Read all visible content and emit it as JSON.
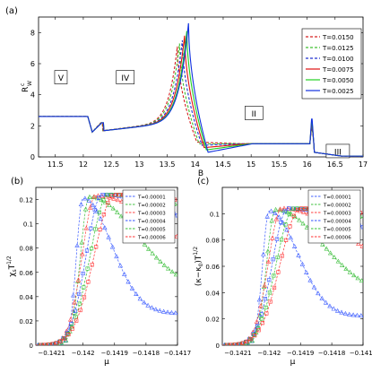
{
  "chart_data": [
    {
      "panel": "(a)",
      "type": "line",
      "xlabel": "B",
      "ylabel_base": "R",
      "ylabel_sup": "c",
      "ylabel_sub": "W",
      "xlim": [
        11.2,
        17
      ],
      "ylim": [
        0,
        9
      ],
      "xticks": [
        11.5,
        12,
        12.5,
        13,
        13.5,
        14,
        14.5,
        15,
        15.5,
        16,
        16.5,
        17
      ],
      "xtick_labels": [
        "11.5",
        "12",
        "12.5",
        "13",
        "13.5",
        "14",
        "14.5",
        "15",
        "15.5",
        "16",
        "16.5",
        "17"
      ],
      "yticks": [
        0,
        2,
        4,
        6,
        8
      ],
      "ytick_labels": [
        "0",
        "2",
        "4",
        "6",
        "8"
      ],
      "legend_position": "top-right",
      "region_labels": [
        {
          "text": "V",
          "x": 11.6,
          "y": 5.1
        },
        {
          "text": "IV",
          "x": 12.75,
          "y": 5.1
        },
        {
          "text": "II",
          "x": 15.05,
          "y": 2.8
        },
        {
          "text": "III",
          "x": 16.55,
          "y": 0.35
        }
      ],
      "series": [
        {
          "name": "T=0.0150",
          "color": "#d62020",
          "dash": "dashed",
          "peak_x": 13.68,
          "peak_y": 7.1,
          "jump_y": 2.0,
          "lowmin": 0.95
        },
        {
          "name": "T=0.0125",
          "color": "#40c030",
          "dash": "dashed",
          "peak_x": 13.72,
          "peak_y": 7.3,
          "jump_y": 2.1,
          "lowmin": 0.85
        },
        {
          "name": "T=0.0100",
          "color": "#2030d0",
          "dash": "dashed",
          "peak_x": 13.77,
          "peak_y": 7.5,
          "jump_y": 2.2,
          "lowmin": 0.75
        },
        {
          "name": "T=0.0075",
          "color": "#e01010",
          "dash": "solid",
          "peak_x": 13.81,
          "peak_y": 7.8,
          "jump_y": 2.35,
          "lowmin": 0.6
        },
        {
          "name": "T=0.0050",
          "color": "#20d020",
          "dash": "solid",
          "peak_x": 13.85,
          "peak_y": 8.1,
          "jump_y": 2.5,
          "lowmin": 0.45
        },
        {
          "name": "T=0.0025",
          "color": "#1030e0",
          "dash": "solid",
          "peak_x": 13.88,
          "peak_y": 8.6,
          "jump_y": 2.7,
          "lowmin": 0.3
        }
      ]
    },
    {
      "panel": "(b)",
      "type": "line",
      "xlabel": "μ",
      "ylabel_base": "χ",
      "ylabel_sub": "s",
      "ylabel_T": "T",
      "ylabel_sup": "1/2",
      "xlim": [
        -0.14215,
        -0.1417
      ],
      "ylim": [
        0,
        0.13
      ],
      "xticks": [
        -0.1421,
        -0.142,
        -0.1419,
        -0.1418,
        -0.1417
      ],
      "xtick_labels": [
        "−0.1421",
        "−0.142",
        "−0.1419",
        "−0.1418",
        "−0.1417"
      ],
      "yticks": [
        0,
        0.02,
        0.04,
        0.06,
        0.08,
        0.1,
        0.12
      ],
      "ytick_labels": [
        "0",
        "0.02",
        "0.04",
        "0.06",
        "0.08",
        "0.1",
        "0.12"
      ],
      "legend_position": "top-right",
      "series": [
        {
          "name": "T=0.00001",
          "color": "#4060ff",
          "marker": "triangle",
          "peak_x": -0.142,
          "peak_y": 0.121,
          "tail_y": 0.026,
          "wl": 3e-05,
          "wr": 0.00012
        },
        {
          "name": "T=0.00002",
          "color": "#40c040",
          "marker": "triangle",
          "peak_x": -0.14198,
          "peak_y": 0.122,
          "tail_y": 0.044,
          "wl": 4e-05,
          "wr": 0.0002
        },
        {
          "name": "T=0.00003",
          "color": "#ff4040",
          "marker": "triangle",
          "peak_x": -0.14196,
          "peak_y": 0.123,
          "tail_y": 0.06,
          "wl": 6e-05,
          "wr": 0.00028
        },
        {
          "name": "T=0.00004",
          "color": "#3050ff",
          "marker": "square",
          "peak_x": -0.14194,
          "peak_y": 0.124,
          "tail_y": 0.072,
          "wl": 7e-05,
          "wr": 0.00036
        },
        {
          "name": "T=0.00005",
          "color": "#30c030",
          "marker": "square",
          "peak_x": -0.14192,
          "peak_y": 0.124,
          "tail_y": 0.081,
          "wl": 8e-05,
          "wr": 0.00044
        },
        {
          "name": "T=0.00006",
          "color": "#ff3030",
          "marker": "square",
          "peak_x": -0.1419,
          "peak_y": 0.124,
          "tail_y": 0.088,
          "wl": 9e-05,
          "wr": 0.00052
        }
      ]
    },
    {
      "panel": "(c)",
      "type": "line",
      "xlabel": "μ",
      "ylabel_text": "(κ−κ",
      "ylabel_sub": "0",
      "ylabel_T": ")T",
      "ylabel_sup": "1/2",
      "xlim": [
        -0.14215,
        -0.1417
      ],
      "ylim": [
        0,
        0.12
      ],
      "xticks": [
        -0.1421,
        -0.142,
        -0.1419,
        -0.1418,
        -0.1417
      ],
      "xtick_labels": [
        "−0.1421",
        "−0.142",
        "−0.1419",
        "−0.1418",
        "−0.1417"
      ],
      "yticks": [
        0,
        0.02,
        0.04,
        0.06,
        0.08,
        0.1
      ],
      "ytick_labels": [
        "0",
        "0.02",
        "0.04",
        "0.06",
        "0.08",
        "0.1"
      ],
      "legend_position": "top-right",
      "series": [
        {
          "name": "T=0.00001",
          "color": "#4060ff",
          "marker": "triangle",
          "peak_x": -0.142,
          "peak_y": 0.102,
          "tail_y": 0.022,
          "wl": 3e-05,
          "wr": 0.00012
        },
        {
          "name": "T=0.00002",
          "color": "#40c040",
          "marker": "triangle",
          "peak_x": -0.14198,
          "peak_y": 0.103,
          "tail_y": 0.037,
          "wl": 4e-05,
          "wr": 0.0002
        },
        {
          "name": "T=0.00003",
          "color": "#ff4040",
          "marker": "triangle",
          "peak_x": -0.14196,
          "peak_y": 0.104,
          "tail_y": 0.05,
          "wl": 6e-05,
          "wr": 0.00028
        },
        {
          "name": "T=0.00004",
          "color": "#3050ff",
          "marker": "square",
          "peak_x": -0.14194,
          "peak_y": 0.104,
          "tail_y": 0.061,
          "wl": 7e-05,
          "wr": 0.00036
        },
        {
          "name": "T=0.00005",
          "color": "#30c030",
          "marker": "square",
          "peak_x": -0.14192,
          "peak_y": 0.104,
          "tail_y": 0.069,
          "wl": 8e-05,
          "wr": 0.00044
        },
        {
          "name": "T=0.00006",
          "color": "#ff3030",
          "marker": "square",
          "peak_x": -0.1419,
          "peak_y": 0.104,
          "tail_y": 0.075,
          "wl": 9e-05,
          "wr": 0.00052
        }
      ]
    }
  ]
}
